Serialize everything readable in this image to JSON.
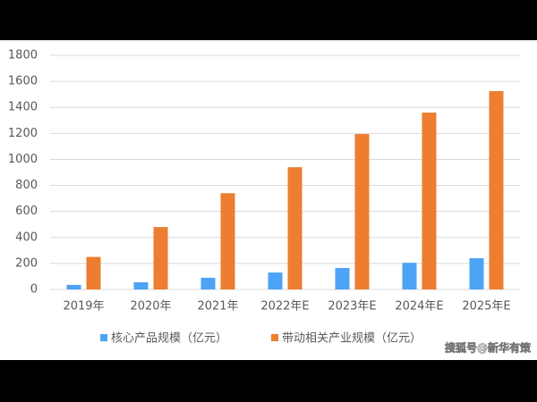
{
  "chart_data": {
    "type": "bar",
    "categories": [
      "2019年",
      "2020年",
      "2021年",
      "2022年E",
      "2023年E",
      "2024年E",
      "2025年E"
    ],
    "series": [
      {
        "name": "核心产品规模（亿元）",
        "color": "#4da3f5",
        "values": [
          35,
          55,
          90,
          130,
          165,
          205,
          240
        ]
      },
      {
        "name": "带动相关产业规模（亿元）",
        "color": "#ed7d31",
        "values": [
          250,
          480,
          740,
          940,
          1195,
          1360,
          1525
        ]
      }
    ],
    "ylim": [
      0,
      1800
    ],
    "yticks": [
      0,
      200,
      400,
      600,
      800,
      1000,
      1200,
      1400,
      1600,
      1800
    ],
    "grid": true
  },
  "watermark": "搜狐号@新华有策"
}
